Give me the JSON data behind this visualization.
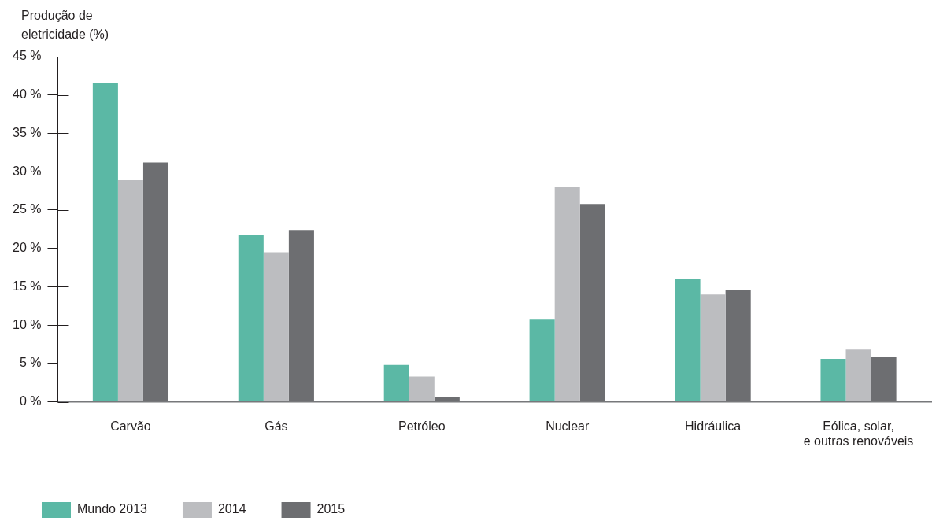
{
  "chart_data": {
    "type": "bar",
    "ylabel": "Produção de eletricidade (%)",
    "categories": [
      "Carvão",
      "Gás",
      "Petróleo",
      "Nuclear",
      "Hidráulica",
      "Eólica, solar,\ne outras renováveis"
    ],
    "series": [
      {
        "name": "Mundo 2013",
        "color": "#5bb8a5",
        "values": [
          41.5,
          21.8,
          4.8,
          10.8,
          16.0,
          5.6
        ]
      },
      {
        "name": "2014",
        "color": "#bcbdc0",
        "values": [
          28.9,
          19.5,
          3.3,
          28.0,
          14.0,
          6.8
        ]
      },
      {
        "name": "2015",
        "color": "#6d6e71",
        "values": [
          31.2,
          22.4,
          0.6,
          25.8,
          14.6,
          5.9
        ]
      }
    ],
    "ylim": [
      0,
      45
    ],
    "yticks": [
      {
        "value": 0,
        "label": "0 %"
      },
      {
        "value": 5,
        "label": "5 %"
      },
      {
        "value": 10,
        "label": "10 %"
      },
      {
        "value": 15,
        "label": "15 %"
      },
      {
        "value": 20,
        "label": "20 %"
      },
      {
        "value": 25,
        "label": "25 %"
      },
      {
        "value": 30,
        "label": "30 %"
      },
      {
        "value": 35,
        "label": "35 %"
      },
      {
        "value": 40,
        "label": "40 %"
      },
      {
        "value": 45,
        "label": "45 %"
      }
    ],
    "grid": false,
    "legend": "bottom left"
  }
}
